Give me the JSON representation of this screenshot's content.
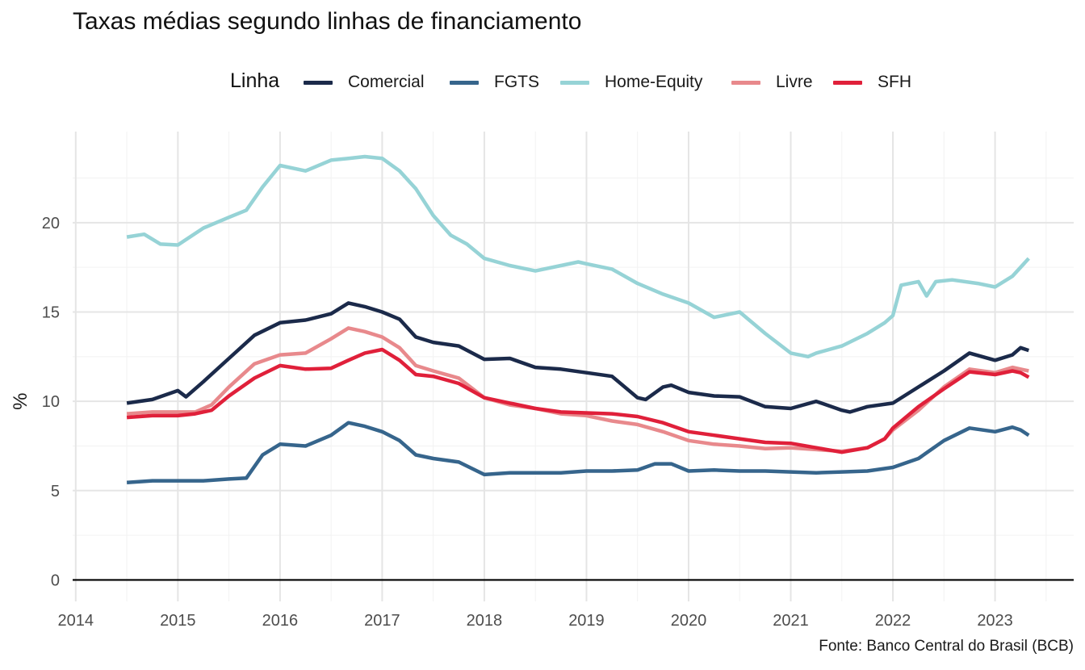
{
  "title": "Taxas médias segundo linhas de financiamento",
  "source": "Fonte: Banco Central do Brasil (BCB)",
  "legend": {
    "title": "Linha",
    "items": [
      {
        "label": "Comercial",
        "color": "#1b2a4a"
      },
      {
        "label": "FGTS",
        "color": "#36658c"
      },
      {
        "label": "Home-Equity",
        "color": "#96d3d6"
      },
      {
        "label": "Livre",
        "color": "#e8898c"
      },
      {
        "label": "SFH",
        "color": "#e0203a"
      }
    ]
  },
  "chart_data": {
    "type": "line",
    "title": "Taxas médias segundo linhas de financiamento",
    "xlabel": "",
    "ylabel": "%",
    "xlim": [
      2013.97,
      2023.77
    ],
    "ylim": [
      -1.2,
      25.1
    ],
    "x_ticks": [
      "2014",
      "2015",
      "2016",
      "2017",
      "2018",
      "2019",
      "2020",
      "2021",
      "2022",
      "2023"
    ],
    "y_ticks": [
      "0",
      "5",
      "10",
      "15",
      "20"
    ],
    "grid": true,
    "legend_position": "top",
    "series": [
      {
        "name": "Comercial",
        "color": "#1b2a4a",
        "points": [
          [
            2014.5,
            9.9
          ],
          [
            2014.75,
            10.1
          ],
          [
            2015.0,
            10.6
          ],
          [
            2015.08,
            10.25
          ],
          [
            2015.25,
            11.1
          ],
          [
            2015.5,
            12.4
          ],
          [
            2015.75,
            13.7
          ],
          [
            2016.0,
            14.4
          ],
          [
            2016.25,
            14.55
          ],
          [
            2016.5,
            14.9
          ],
          [
            2016.67,
            15.5
          ],
          [
            2016.83,
            15.3
          ],
          [
            2017.0,
            15.0
          ],
          [
            2017.17,
            14.6
          ],
          [
            2017.33,
            13.6
          ],
          [
            2017.5,
            13.3
          ],
          [
            2017.75,
            13.1
          ],
          [
            2018.0,
            12.35
          ],
          [
            2018.25,
            12.4
          ],
          [
            2018.5,
            11.9
          ],
          [
            2018.75,
            11.8
          ],
          [
            2019.0,
            11.6
          ],
          [
            2019.25,
            11.4
          ],
          [
            2019.5,
            10.2
          ],
          [
            2019.58,
            10.1
          ],
          [
            2019.75,
            10.8
          ],
          [
            2019.83,
            10.9
          ],
          [
            2020.0,
            10.5
          ],
          [
            2020.25,
            10.3
          ],
          [
            2020.5,
            10.25
          ],
          [
            2020.75,
            9.7
          ],
          [
            2021.0,
            9.6
          ],
          [
            2021.25,
            10.0
          ],
          [
            2021.5,
            9.5
          ],
          [
            2021.58,
            9.4
          ],
          [
            2021.75,
            9.7
          ],
          [
            2022.0,
            9.9
          ],
          [
            2022.25,
            10.8
          ],
          [
            2022.5,
            11.7
          ],
          [
            2022.75,
            12.7
          ],
          [
            2023.0,
            12.3
          ],
          [
            2023.17,
            12.6
          ],
          [
            2023.25,
            13.0
          ],
          [
            2023.33,
            12.85
          ]
        ]
      },
      {
        "name": "FGTS",
        "color": "#36658c",
        "points": [
          [
            2014.5,
            5.45
          ],
          [
            2014.75,
            5.55
          ],
          [
            2015.0,
            5.55
          ],
          [
            2015.25,
            5.55
          ],
          [
            2015.5,
            5.65
          ],
          [
            2015.67,
            5.7
          ],
          [
            2015.83,
            7.0
          ],
          [
            2016.0,
            7.6
          ],
          [
            2016.25,
            7.5
          ],
          [
            2016.5,
            8.1
          ],
          [
            2016.67,
            8.8
          ],
          [
            2016.83,
            8.6
          ],
          [
            2017.0,
            8.3
          ],
          [
            2017.17,
            7.8
          ],
          [
            2017.33,
            7.0
          ],
          [
            2017.5,
            6.8
          ],
          [
            2017.75,
            6.6
          ],
          [
            2018.0,
            5.9
          ],
          [
            2018.25,
            6.0
          ],
          [
            2018.5,
            6.0
          ],
          [
            2018.75,
            6.0
          ],
          [
            2019.0,
            6.1
          ],
          [
            2019.25,
            6.1
          ],
          [
            2019.5,
            6.15
          ],
          [
            2019.67,
            6.5
          ],
          [
            2019.83,
            6.5
          ],
          [
            2020.0,
            6.1
          ],
          [
            2020.25,
            6.15
          ],
          [
            2020.5,
            6.1
          ],
          [
            2020.75,
            6.1
          ],
          [
            2021.0,
            6.05
          ],
          [
            2021.25,
            6.0
          ],
          [
            2021.5,
            6.05
          ],
          [
            2021.75,
            6.1
          ],
          [
            2022.0,
            6.3
          ],
          [
            2022.25,
            6.8
          ],
          [
            2022.5,
            7.8
          ],
          [
            2022.75,
            8.5
          ],
          [
            2023.0,
            8.3
          ],
          [
            2023.17,
            8.55
          ],
          [
            2023.25,
            8.4
          ],
          [
            2023.33,
            8.1
          ]
        ]
      },
      {
        "name": "Home-Equity",
        "color": "#96d3d6",
        "points": [
          [
            2014.5,
            19.2
          ],
          [
            2014.67,
            19.35
          ],
          [
            2014.83,
            18.8
          ],
          [
            2015.0,
            18.75
          ],
          [
            2015.25,
            19.7
          ],
          [
            2015.5,
            20.3
          ],
          [
            2015.67,
            20.7
          ],
          [
            2015.83,
            22.0
          ],
          [
            2016.0,
            23.2
          ],
          [
            2016.25,
            22.9
          ],
          [
            2016.5,
            23.5
          ],
          [
            2016.67,
            23.6
          ],
          [
            2016.83,
            23.7
          ],
          [
            2017.0,
            23.6
          ],
          [
            2017.17,
            22.9
          ],
          [
            2017.33,
            21.9
          ],
          [
            2017.5,
            20.4
          ],
          [
            2017.67,
            19.3
          ],
          [
            2017.83,
            18.8
          ],
          [
            2018.0,
            18.0
          ],
          [
            2018.25,
            17.6
          ],
          [
            2018.5,
            17.3
          ],
          [
            2018.75,
            17.6
          ],
          [
            2018.92,
            17.8
          ],
          [
            2019.0,
            17.7
          ],
          [
            2019.25,
            17.4
          ],
          [
            2019.5,
            16.6
          ],
          [
            2019.75,
            16.0
          ],
          [
            2020.0,
            15.5
          ],
          [
            2020.25,
            14.7
          ],
          [
            2020.5,
            15.0
          ],
          [
            2020.75,
            13.8
          ],
          [
            2021.0,
            12.7
          ],
          [
            2021.17,
            12.5
          ],
          [
            2021.25,
            12.7
          ],
          [
            2021.5,
            13.1
          ],
          [
            2021.75,
            13.8
          ],
          [
            2021.92,
            14.4
          ],
          [
            2022.0,
            14.8
          ],
          [
            2022.08,
            16.5
          ],
          [
            2022.25,
            16.7
          ],
          [
            2022.33,
            15.9
          ],
          [
            2022.42,
            16.7
          ],
          [
            2022.58,
            16.8
          ],
          [
            2022.83,
            16.6
          ],
          [
            2023.0,
            16.4
          ],
          [
            2023.17,
            17.0
          ],
          [
            2023.25,
            17.5
          ],
          [
            2023.33,
            18.0
          ]
        ]
      },
      {
        "name": "Livre",
        "color": "#e8898c",
        "points": [
          [
            2014.5,
            9.3
          ],
          [
            2014.75,
            9.4
          ],
          [
            2015.0,
            9.4
          ],
          [
            2015.17,
            9.4
          ],
          [
            2015.33,
            9.8
          ],
          [
            2015.5,
            10.8
          ],
          [
            2015.75,
            12.1
          ],
          [
            2016.0,
            12.6
          ],
          [
            2016.25,
            12.7
          ],
          [
            2016.5,
            13.5
          ],
          [
            2016.67,
            14.1
          ],
          [
            2016.83,
            13.9
          ],
          [
            2017.0,
            13.6
          ],
          [
            2017.17,
            13.0
          ],
          [
            2017.33,
            12.0
          ],
          [
            2017.5,
            11.7
          ],
          [
            2017.75,
            11.3
          ],
          [
            2018.0,
            10.2
          ],
          [
            2018.25,
            9.8
          ],
          [
            2018.5,
            9.6
          ],
          [
            2018.75,
            9.3
          ],
          [
            2019.0,
            9.2
          ],
          [
            2019.25,
            8.9
          ],
          [
            2019.5,
            8.7
          ],
          [
            2019.75,
            8.3
          ],
          [
            2020.0,
            7.8
          ],
          [
            2020.25,
            7.6
          ],
          [
            2020.5,
            7.5
          ],
          [
            2020.75,
            7.35
          ],
          [
            2021.0,
            7.4
          ],
          [
            2021.25,
            7.3
          ],
          [
            2021.5,
            7.2
          ],
          [
            2021.75,
            7.4
          ],
          [
            2021.92,
            7.9
          ],
          [
            2022.0,
            8.4
          ],
          [
            2022.25,
            9.5
          ],
          [
            2022.5,
            10.8
          ],
          [
            2022.75,
            11.8
          ],
          [
            2023.0,
            11.6
          ],
          [
            2023.17,
            11.9
          ],
          [
            2023.25,
            11.8
          ],
          [
            2023.33,
            11.7
          ]
        ]
      },
      {
        "name": "SFH",
        "color": "#e0203a",
        "points": [
          [
            2014.5,
            9.1
          ],
          [
            2014.75,
            9.2
          ],
          [
            2015.0,
            9.2
          ],
          [
            2015.17,
            9.3
          ],
          [
            2015.33,
            9.5
          ],
          [
            2015.5,
            10.3
          ],
          [
            2015.75,
            11.3
          ],
          [
            2016.0,
            12.0
          ],
          [
            2016.25,
            11.8
          ],
          [
            2016.5,
            11.85
          ],
          [
            2016.67,
            12.3
          ],
          [
            2016.83,
            12.7
          ],
          [
            2017.0,
            12.9
          ],
          [
            2017.17,
            12.3
          ],
          [
            2017.33,
            11.5
          ],
          [
            2017.5,
            11.4
          ],
          [
            2017.75,
            11.0
          ],
          [
            2018.0,
            10.2
          ],
          [
            2018.25,
            9.9
          ],
          [
            2018.5,
            9.6
          ],
          [
            2018.75,
            9.4
          ],
          [
            2019.0,
            9.35
          ],
          [
            2019.25,
            9.3
          ],
          [
            2019.5,
            9.15
          ],
          [
            2019.75,
            8.8
          ],
          [
            2020.0,
            8.3
          ],
          [
            2020.25,
            8.1
          ],
          [
            2020.5,
            7.9
          ],
          [
            2020.75,
            7.7
          ],
          [
            2021.0,
            7.65
          ],
          [
            2021.25,
            7.4
          ],
          [
            2021.5,
            7.15
          ],
          [
            2021.75,
            7.4
          ],
          [
            2021.92,
            7.9
          ],
          [
            2022.0,
            8.5
          ],
          [
            2022.25,
            9.7
          ],
          [
            2022.5,
            10.7
          ],
          [
            2022.75,
            11.65
          ],
          [
            2023.0,
            11.5
          ],
          [
            2023.17,
            11.7
          ],
          [
            2023.25,
            11.6
          ],
          [
            2023.33,
            11.35
          ]
        ]
      }
    ]
  }
}
